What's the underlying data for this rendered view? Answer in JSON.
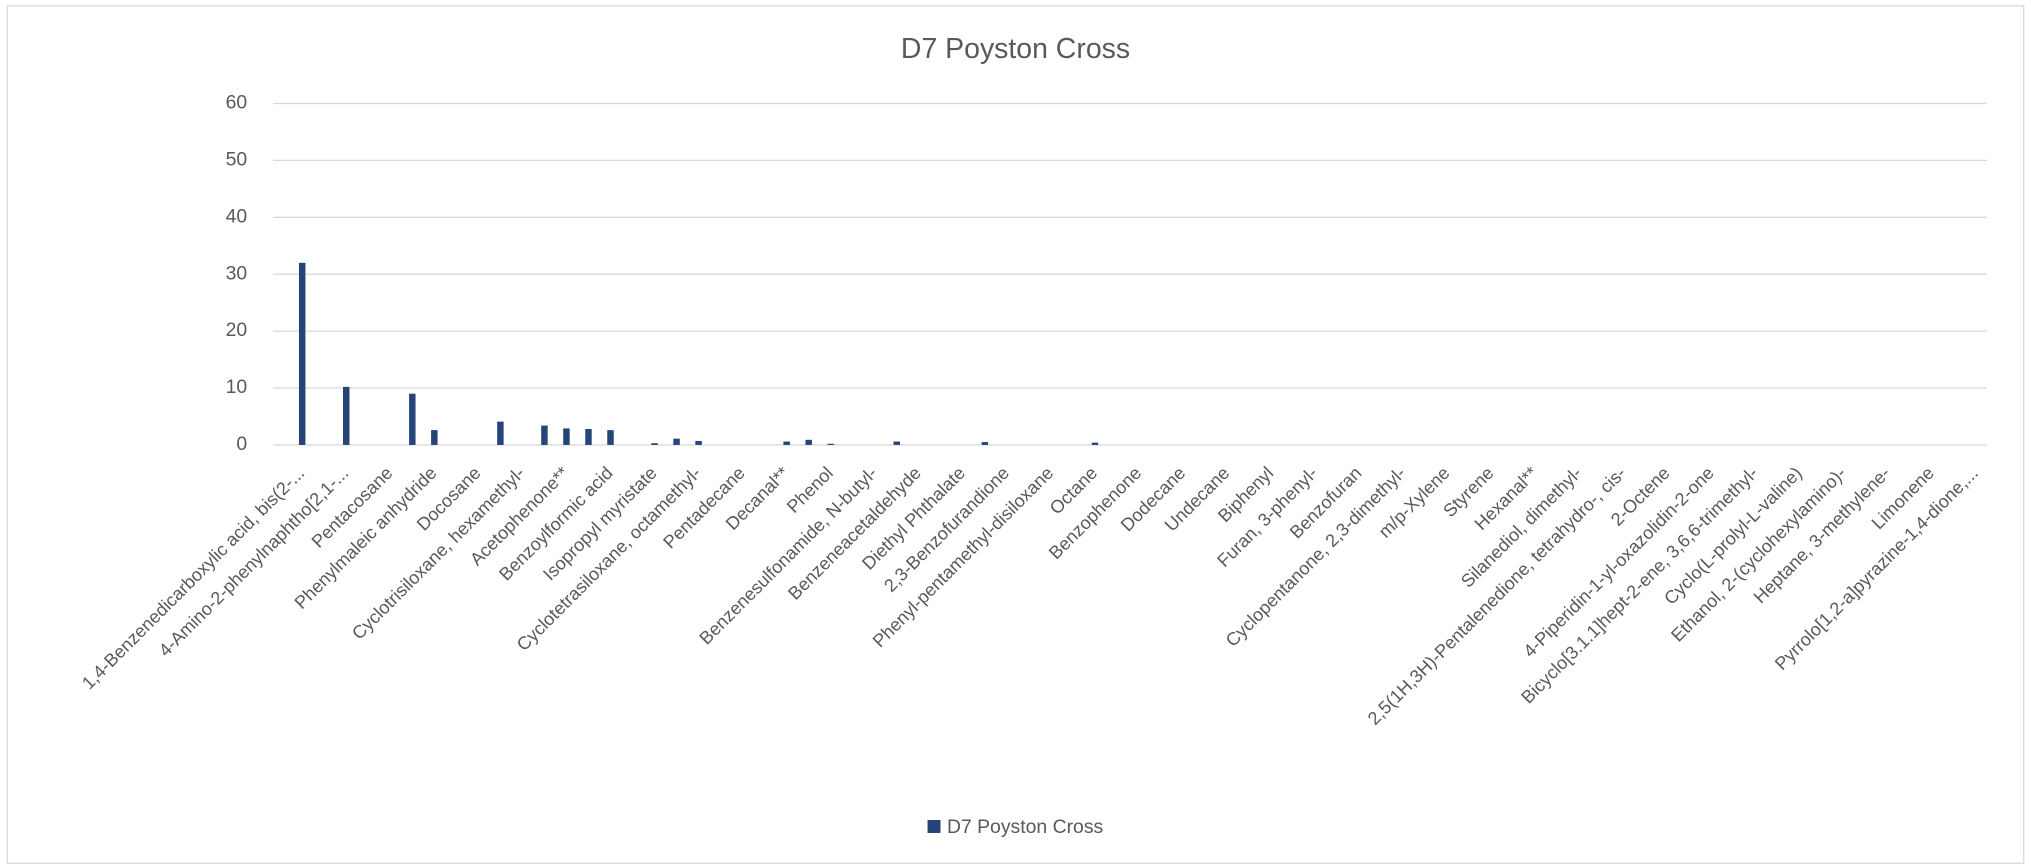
{
  "chart_data": {
    "type": "bar",
    "title": "D7 Poyston Cross",
    "categories": [
      "1,4-Benzenedicarboxylic acid, bis(2-...",
      null,
      "4-Amino-2-phenylnaphtho[2,1-...",
      null,
      "Pentacosane",
      null,
      "Phenylmaleic anhydride",
      null,
      "Docosane",
      null,
      "Cyclotrisiloxane, hexamethyl-",
      null,
      "Acetophenone**",
      null,
      "Benzoylformic acid",
      null,
      "Isopropyl myristate",
      null,
      "Cyclotetrasiloxane, octamethyl-",
      null,
      "Pentadecane",
      null,
      "Decanal**",
      null,
      "Phenol",
      null,
      "Benzenesulfonamide, N-butyl-",
      null,
      "Benzeneacetaldehyde",
      null,
      "Diethyl Phthalate",
      null,
      "2,3-Benzofurandione",
      null,
      "Phenyl-pentamethyl-disiloxane",
      null,
      "Octane",
      null,
      "Benzophenone",
      null,
      "Dodecane",
      null,
      "Undecane",
      null,
      "Biphenyl",
      null,
      "Furan, 3-phenyl-",
      null,
      "Benzofuran",
      null,
      "Cyclopentanone, 2,3-dimethyl-",
      null,
      "m/p-Xylene",
      null,
      "Styrene",
      null,
      "Hexanal**",
      null,
      "Silanediol, dimethyl-",
      null,
      "2,5(1H,3H)-Pentalenedione, tetrahydro-, cis-",
      null,
      "2-Octene",
      null,
      "4-Piperidin-1-yl-oxazolidin-2-one",
      null,
      "Bicyclo[3.1.1]hept-2-ene, 3,6,6-trimethyl-",
      null,
      "Cyclo(L-prolyl-L-valine)",
      null,
      "Ethanol, 2-(cyclohexylamino)-",
      null,
      "Heptane, 3-methylene-",
      null,
      "Limonene",
      null,
      "Pyrrolo[1,2-a]pyrazine-1,4-dione,..."
    ],
    "series": [
      {
        "name": "D7 Poyston Cross",
        "color": "#264478",
        "values": [
          32,
          0,
          10.2,
          0,
          0,
          9,
          2.6,
          0,
          0,
          4.1,
          0,
          3.4,
          2.9,
          2.8,
          2.6,
          0,
          0.3,
          1.1,
          0.7,
          0,
          0,
          0,
          0.6,
          0.9,
          0.2,
          0,
          0,
          0.6,
          0,
          0,
          0,
          0.5,
          0,
          0,
          0,
          0,
          0.4,
          0,
          0,
          0,
          0,
          0,
          0,
          0,
          0,
          0,
          0,
          0,
          0,
          0,
          0,
          0,
          0,
          0,
          0,
          0,
          0,
          0,
          0,
          0,
          0,
          0,
          0,
          0,
          0,
          0,
          0,
          0,
          0,
          0,
          0,
          0,
          0,
          0,
          0,
          0,
          0
        ]
      }
    ],
    "ylim": [
      0,
      60
    ],
    "yticks": [
      0,
      10,
      20,
      30,
      40,
      50,
      60
    ],
    "grid": true,
    "legend": "bottom"
  }
}
